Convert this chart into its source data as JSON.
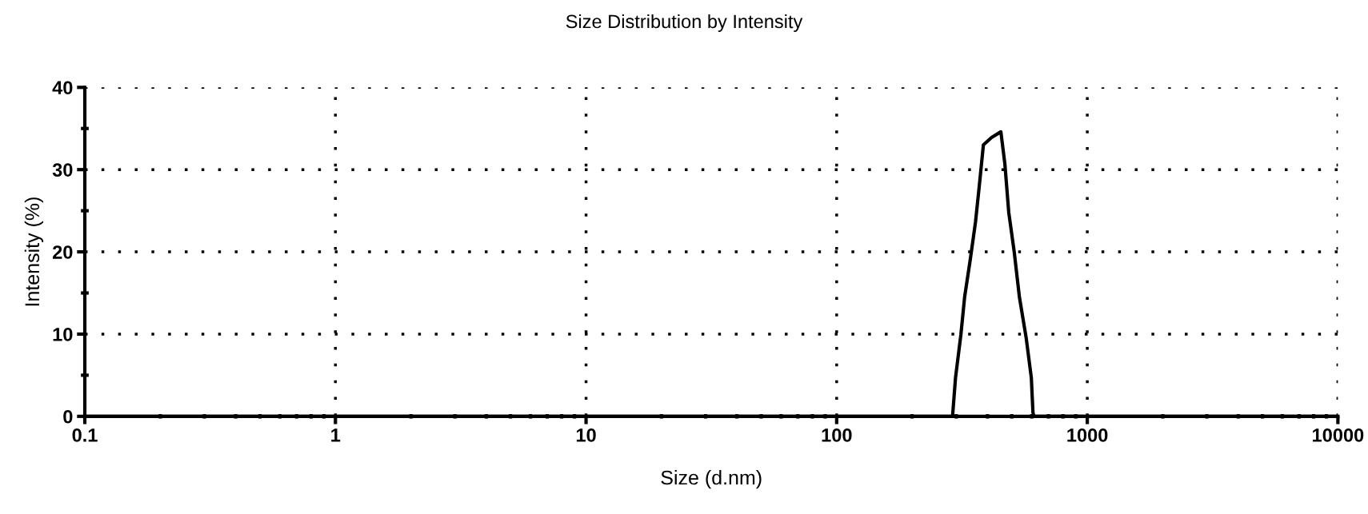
{
  "chart_data": {
    "type": "line",
    "title": "Size Distribution by Intensity",
    "xlabel": "Size (d.nm)",
    "ylabel": "Intensity (%)",
    "log": "x",
    "grid": true,
    "marker": "none",
    "line_style": "solid",
    "xlim": [
      0.1,
      10000
    ],
    "xticks": [
      0.1,
      1,
      10,
      100,
      1000,
      10000
    ],
    "ylim": [
      0,
      40
    ],
    "yticks": [
      0,
      {
        "value": 5,
        "label": null
      },
      10,
      {
        "value": 15,
        "label": null
      },
      20,
      {
        "value": 25,
        "label": null
      },
      30,
      {
        "value": 35,
        "label": null
      },
      40
    ],
    "series": [
      {
        "color": "#000000",
        "x": [
          0.1,
          290,
          298,
          313,
          324,
          341,
          358,
          371,
          385,
          415,
          452,
          469,
          486,
          511,
          536,
          570,
          598,
          607,
          612,
          10000
        ],
        "values": [
          0,
          0,
          4.7,
          9.9,
          14.5,
          19.0,
          23.6,
          28.1,
          33.0,
          33.9,
          34.6,
          30.7,
          24.8,
          20.0,
          14.5,
          9.6,
          4.7,
          0.5,
          0,
          0
        ]
      }
    ]
  }
}
